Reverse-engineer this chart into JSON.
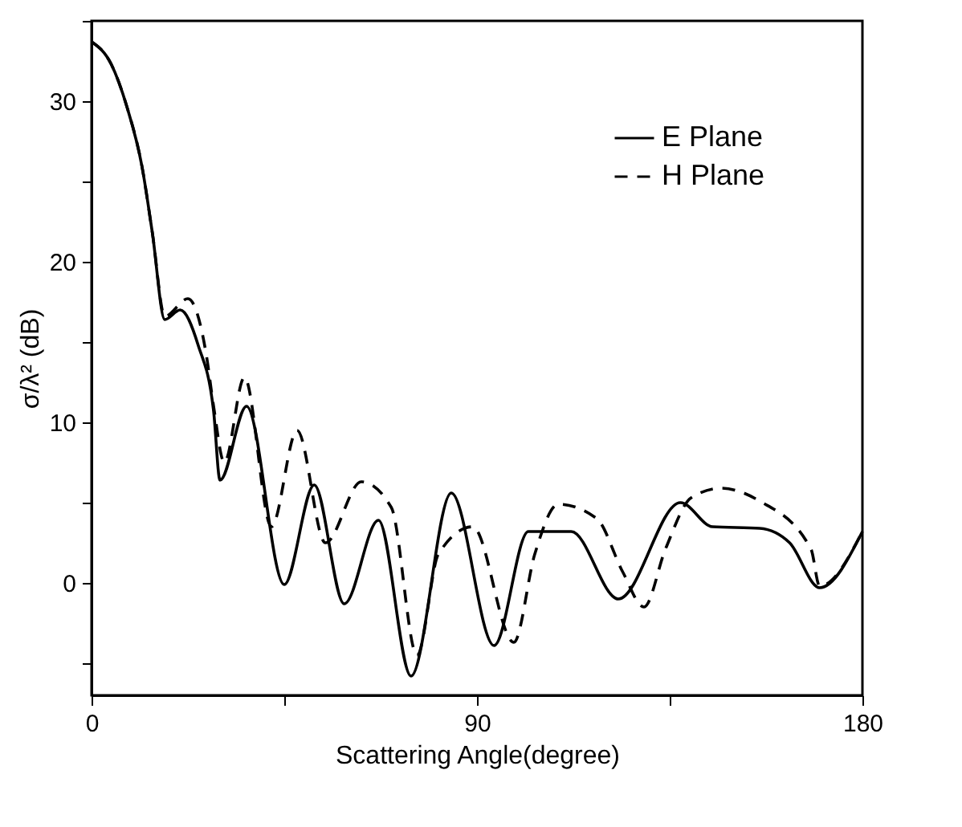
{
  "chart_data": {
    "type": "line",
    "xlabel": "Scattering Angle(degree)",
    "ylabel": "σ/λ² (dB)",
    "xlim": [
      0,
      180
    ],
    "xticks": [
      0,
      {
        "value": 45,
        "label": null
      },
      90,
      {
        "value": 135,
        "label": null
      },
      180
    ],
    "ylim": [
      -7,
      35
    ],
    "yticks": [
      {
        "value": -5,
        "label": null
      },
      0,
      {
        "value": 5,
        "label": null
      },
      10,
      {
        "value": 15,
        "label": null
      },
      20,
      {
        "value": 25,
        "label": null
      },
      30,
      {
        "value": 35,
        "label": null
      }
    ],
    "grid": false,
    "legend": "top right",
    "series": [
      {
        "name": "E Plane",
        "color": "#000000",
        "line_style": "solid",
        "x": [
          0,
          4.6,
          8.2,
          11.8,
          14.2,
          17.1,
          20.7,
          24.9,
          28.5,
          30,
          36.2,
          45,
          52,
          59,
          67,
          74.6,
          84,
          94,
          102,
          112,
          123,
          137.5,
          145,
          156,
          163,
          170,
          180
        ],
        "values": [
          33.7,
          32.3,
          29.7,
          25.9,
          21.8,
          16.4,
          17.0,
          14.8,
          10.7,
          6.4,
          11.0,
          -0.1,
          6.1,
          -1.3,
          3.9,
          -5.8,
          5.6,
          -3.9,
          3.2,
          3.2,
          -1.0,
          5.0,
          3.5,
          3.4,
          2.5,
          -0.3,
          3.2
        ]
      },
      {
        "name": "H Plane",
        "color": "#000000",
        "line_style": "dashed",
        "x": [
          0,
          4.6,
          8.2,
          11.8,
          14.2,
          17.1,
          22.5,
          26.8,
          28.5,
          31,
          35.7,
          42,
          48,
          54.6,
          63,
          70,
          76,
          81,
          89,
          98.6,
          103.5,
          109,
          118,
          124,
          129,
          134,
          140,
          147,
          156,
          168,
          170,
          180
        ],
        "values": [
          33.7,
          32.3,
          29.7,
          25.9,
          21.8,
          16.6,
          17.7,
          14.2,
          11.0,
          7.5,
          12.8,
          3.5,
          9.5,
          2.5,
          6.3,
          4.7,
          -4.5,
          1.8,
          3.5,
          -3.7,
          1.8,
          4.9,
          4.0,
          0.7,
          -1.5,
          2.1,
          5.3,
          5.9,
          5.1,
          2.1,
          -0.2,
          3.2
        ]
      }
    ]
  }
}
